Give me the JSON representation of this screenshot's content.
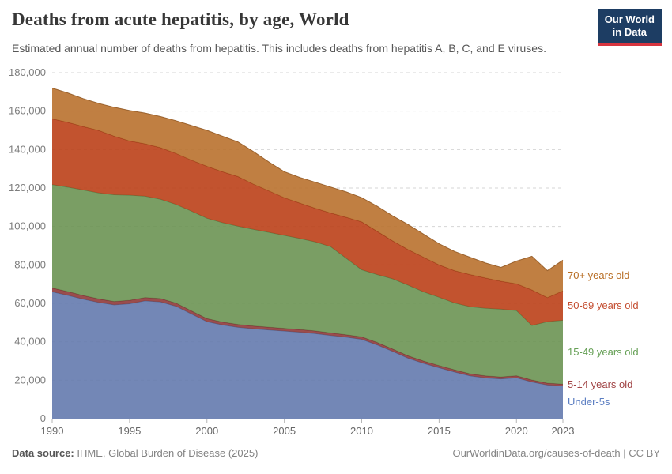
{
  "branding": {
    "logo_line1": "Our World",
    "logo_line2": "in Data",
    "logo_bg": "#1D3D63",
    "logo_stripe": "#D7343F"
  },
  "footer": {
    "source_label": "Data source:",
    "source_value": " IHME, Global Burden of Disease (2025)",
    "right_text": "OurWorldinData.org/causes-of-death | CC BY"
  },
  "chart_data": {
    "type": "area",
    "stacked": true,
    "title": "Deaths from acute hepatitis, by age, World",
    "subtitle": "Estimated annual number of deaths from hepatitis. This includes deaths from hepatitis A, B, C, and E viruses.",
    "xlabel": "",
    "ylabel": "",
    "grid": "dashed-horizontal",
    "grid_color": "#D5D5D5",
    "axis_text_color": "#7D7D7D",
    "xaxis_text_color": "#666666",
    "legend_position": "right",
    "ylim": [
      0,
      180000
    ],
    "yticks": [
      {
        "value": 0,
        "label": "0"
      },
      {
        "value": 20000,
        "label": "20,000"
      },
      {
        "value": 40000,
        "label": "40,000"
      },
      {
        "value": 60000,
        "label": "60,000"
      },
      {
        "value": 80000,
        "label": "80,000"
      },
      {
        "value": 100000,
        "label": "100,000"
      },
      {
        "value": 120000,
        "label": "120,000"
      },
      {
        "value": 140000,
        "label": "140,000"
      },
      {
        "value": 160000,
        "label": "160,000"
      },
      {
        "value": 180000,
        "label": "180,000"
      }
    ],
    "xticks": [
      1990,
      1995,
      2000,
      2005,
      2010,
      2015,
      2020,
      2023
    ],
    "x": [
      1990,
      1991,
      1992,
      1993,
      1994,
      1995,
      1996,
      1997,
      1998,
      1999,
      2000,
      2001,
      2002,
      2003,
      2004,
      2005,
      2006,
      2007,
      2008,
      2009,
      2010,
      2011,
      2012,
      2013,
      2014,
      2015,
      2016,
      2017,
      2018,
      2019,
      2020,
      2021,
      2022,
      2023
    ],
    "series": [
      {
        "name": "under-5s",
        "label": "Under-5s",
        "color": "#647AAE",
        "label_color": "#5B7EC2",
        "values": [
          66000,
          64200,
          62200,
          60500,
          59200,
          59800,
          61300,
          60800,
          58500,
          54500,
          50500,
          48800,
          47600,
          46800,
          46200,
          45600,
          45000,
          44300,
          43300,
          42400,
          41300,
          38400,
          35000,
          31500,
          28800,
          26500,
          24300,
          22300,
          21200,
          20700,
          21300,
          19100,
          17500,
          17000
        ]
      },
      {
        "name": "5-14-years-old",
        "label": "5-14 years old",
        "color": "#8F3A3A",
        "label_color": "#A04344",
        "values": [
          2000,
          1950,
          1900,
          1850,
          1800,
          1800,
          1750,
          1700,
          1650,
          1600,
          1550,
          1500,
          1480,
          1450,
          1430,
          1400,
          1380,
          1350,
          1330,
          1300,
          1280,
          1250,
          1230,
          1200,
          1180,
          1150,
          1130,
          1100,
          1080,
          1060,
          1050,
          1020,
          1000,
          1000
        ]
      },
      {
        "name": "15-49-years-old",
        "label": "15-49 years old",
        "color": "#6B9353",
        "label_color": "#66A056",
        "values": [
          53800,
          54350,
          54900,
          55150,
          55500,
          54700,
          52750,
          51700,
          51350,
          51900,
          52250,
          51700,
          51120,
          50250,
          49370,
          48400,
          47420,
          46350,
          44870,
          39800,
          34920,
          35350,
          36570,
          36800,
          36020,
          35550,
          34770,
          34900,
          35220,
          35240,
          33950,
          28380,
          32000,
          33200
        ]
      },
      {
        "name": "50-69-years-old",
        "label": "50-69 years old",
        "color": "#BB4018",
        "label_color": "#C44E31",
        "values": [
          34200,
          33700,
          33000,
          32500,
          30500,
          28200,
          27200,
          26800,
          26500,
          26500,
          27000,
          26500,
          25800,
          23500,
          21500,
          19600,
          18400,
          17500,
          17500,
          21300,
          24900,
          22500,
          19700,
          18500,
          18000,
          16800,
          16800,
          16700,
          15700,
          14500,
          13900,
          18500,
          12500,
          15300
        ]
      },
      {
        "name": "70-plus-years-old",
        "label": "70+ years old",
        "color": "#B9712E",
        "label_color": "#B86E25",
        "values": [
          16000,
          15300,
          14500,
          14000,
          15000,
          15800,
          16000,
          16200,
          17000,
          18000,
          18700,
          18500,
          18000,
          17000,
          15000,
          13500,
          13300,
          13500,
          13500,
          13200,
          12600,
          13000,
          13000,
          13000,
          12000,
          11000,
          10000,
          9000,
          7800,
          7200,
          11800,
          17500,
          14000,
          16000
        ]
      }
    ]
  }
}
